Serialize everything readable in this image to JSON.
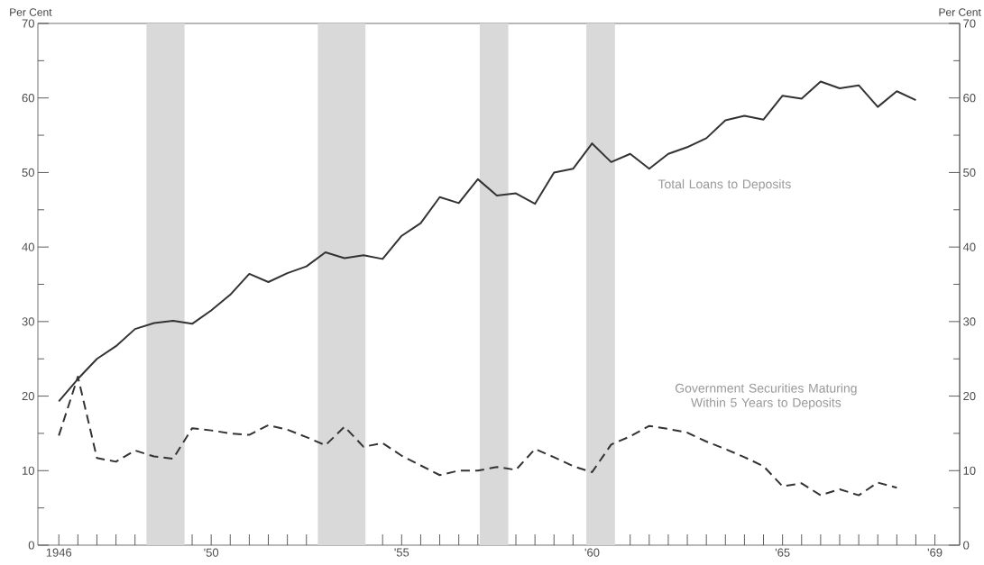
{
  "chart_data": {
    "type": "line",
    "ylabel": "Per Cent",
    "y2label": "Per Cent",
    "xlim": [
      1945.45,
      1969.65
    ],
    "xticks": [
      {
        "value": 1946,
        "label": "1946"
      },
      {
        "value": 1946.5,
        "label": null
      },
      {
        "value": 1947,
        "label": null
      },
      {
        "value": 1947.5,
        "label": null
      },
      {
        "value": 1948,
        "label": null
      },
      {
        "value": 1948.5,
        "label": null
      },
      {
        "value": 1949,
        "label": null
      },
      {
        "value": 1949.5,
        "label": null
      },
      {
        "value": 1950,
        "label": "'50"
      },
      {
        "value": 1950.5,
        "label": null
      },
      {
        "value": 1951,
        "label": null
      },
      {
        "value": 1951.5,
        "label": null
      },
      {
        "value": 1952,
        "label": null
      },
      {
        "value": 1952.5,
        "label": null
      },
      {
        "value": 1953,
        "label": null
      },
      {
        "value": 1953.5,
        "label": null
      },
      {
        "value": 1954,
        "label": null
      },
      {
        "value": 1954.5,
        "label": null
      },
      {
        "value": 1955,
        "label": "'55"
      },
      {
        "value": 1955.5,
        "label": null
      },
      {
        "value": 1956,
        "label": null
      },
      {
        "value": 1956.5,
        "label": null
      },
      {
        "value": 1957,
        "label": null
      },
      {
        "value": 1957.5,
        "label": null
      },
      {
        "value": 1958,
        "label": null
      },
      {
        "value": 1958.5,
        "label": null
      },
      {
        "value": 1959,
        "label": null
      },
      {
        "value": 1959.5,
        "label": null
      },
      {
        "value": 1960,
        "label": "'60"
      },
      {
        "value": 1960.5,
        "label": null
      },
      {
        "value": 1961,
        "label": null
      },
      {
        "value": 1961.5,
        "label": null
      },
      {
        "value": 1962,
        "label": null
      },
      {
        "value": 1962.5,
        "label": null
      },
      {
        "value": 1963,
        "label": null
      },
      {
        "value": 1963.5,
        "label": null
      },
      {
        "value": 1964,
        "label": null
      },
      {
        "value": 1964.5,
        "label": null
      },
      {
        "value": 1965,
        "label": "'65"
      },
      {
        "value": 1965.5,
        "label": null
      },
      {
        "value": 1966,
        "label": null
      },
      {
        "value": 1966.5,
        "label": null
      },
      {
        "value": 1967,
        "label": null
      },
      {
        "value": 1967.5,
        "label": null
      },
      {
        "value": 1968,
        "label": null
      },
      {
        "value": 1968.5,
        "label": null
      },
      {
        "value": 1969,
        "label": "'69"
      }
    ],
    "ylim": [
      0,
      70
    ],
    "yticks": [
      0,
      10,
      20,
      30,
      40,
      50,
      60,
      70
    ],
    "y2lim": [
      0,
      70
    ],
    "y2ticks": [
      0,
      10,
      20,
      30,
      40,
      50,
      60,
      70
    ],
    "bands": [
      {
        "axis": "x",
        "from": 1948.3,
        "to": 1949.3,
        "color": "#d9d9d9"
      },
      {
        "axis": "x",
        "from": 1952.8,
        "to": 1954.05,
        "color": "#d9d9d9"
      },
      {
        "axis": "x",
        "from": 1957.05,
        "to": 1957.8,
        "color": "#d9d9d9"
      },
      {
        "axis": "x",
        "from": 1959.85,
        "to": 1960.6,
        "color": "#d9d9d9"
      }
    ],
    "series": [
      {
        "name": "Total Loans to Deposits",
        "color": "#333333",
        "line_style": "solid",
        "x": [
          1946,
          1946.5,
          1947,
          1947.5,
          1948,
          1948.5,
          1949,
          1949.5,
          1950,
          1950.5,
          1951,
          1951.5,
          1952,
          1952.5,
          1953,
          1953.5,
          1954,
          1954.5,
          1955,
          1955.5,
          1956,
          1956.5,
          1957,
          1957.5,
          1958,
          1958.5,
          1959,
          1959.5,
          1960,
          1960.5,
          1961,
          1961.5,
          1962,
          1962.5,
          1963,
          1963.5,
          1964,
          1964.5,
          1965,
          1965.5,
          1966,
          1966.5,
          1967,
          1967.5,
          1968,
          1968.5
        ],
        "values": [
          19.3,
          22.3,
          25.0,
          26.7,
          29.0,
          29.8,
          30.1,
          29.7,
          31.5,
          33.6,
          36.4,
          35.3,
          36.5,
          37.4,
          39.3,
          38.5,
          38.9,
          38.4,
          41.5,
          43.2,
          46.7,
          45.9,
          49.1,
          46.9,
          47.2,
          45.8,
          50.0,
          50.5,
          53.9,
          51.4,
          52.5,
          50.5,
          52.5,
          53.4,
          54.6,
          57.0,
          57.6,
          57.1,
          60.3,
          59.9,
          62.2,
          61.3,
          61.7,
          58.8,
          60.9,
          59.7
        ]
      },
      {
        "name": "Government Securities Maturing Within 5 Years to Deposits",
        "color": "#333333",
        "line_style": "dashed",
        "x": [
          1946,
          1946.5,
          1947,
          1947.5,
          1948,
          1948.5,
          1949,
          1949.5,
          1950,
          1950.5,
          1951,
          1951.5,
          1952,
          1952.5,
          1953,
          1953.5,
          1954,
          1954.5,
          1955,
          1955.5,
          1956,
          1956.5,
          1957,
          1957.5,
          1958,
          1958.5,
          1959,
          1959.5,
          1960,
          1960.5,
          1961,
          1961.5,
          1962,
          1962.5,
          1963,
          1963.5,
          1964,
          1964.5,
          1965,
          1965.5,
          1966,
          1966.5,
          1967,
          1967.5,
          1968
        ],
        "values": [
          14.7,
          22.6,
          11.7,
          11.2,
          12.7,
          11.9,
          11.6,
          15.7,
          15.4,
          15.0,
          14.8,
          16.1,
          15.5,
          14.5,
          13.4,
          15.9,
          13.2,
          13.7,
          12.0,
          10.7,
          9.4,
          10.0,
          10.0,
          10.5,
          10.1,
          12.9,
          11.8,
          10.6,
          9.8,
          13.5,
          14.6,
          16.0,
          15.6,
          15.1,
          13.9,
          12.9,
          11.8,
          10.6,
          7.9,
          8.3,
          6.7,
          7.5,
          6.7,
          8.4,
          7.7
        ]
      }
    ]
  }
}
